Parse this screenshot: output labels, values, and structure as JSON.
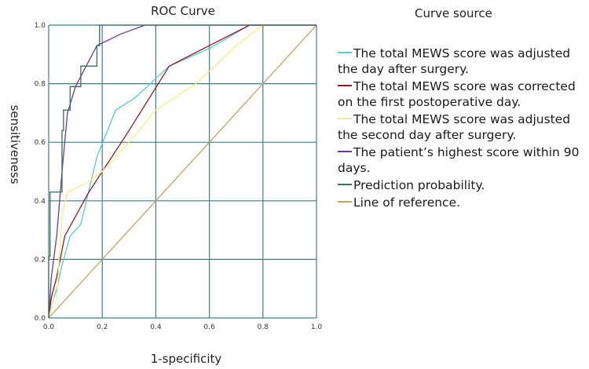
{
  "chart_data": {
    "type": "line",
    "title": "ROC Curve",
    "xlabel": "1-specificity",
    "ylabel": "sensitiveness",
    "xlim": [
      0,
      1
    ],
    "ylim": [
      0,
      1
    ],
    "xticks": [
      "0.0",
      "0.2",
      "0.4",
      "0.6",
      "0.8",
      "1.0"
    ],
    "yticks": [
      "0.0",
      "0.2",
      "0.4",
      "0.6",
      "0.8",
      "1.0"
    ],
    "grid": true,
    "legend_title": "Curve source",
    "legend_position": "right",
    "series": [
      {
        "name": "The total MEWS score was adjusted the day after surgery.",
        "color": "#5bc7cf",
        "x": [
          0,
          0.02,
          0.03,
          0.05,
          0.08,
          0.12,
          0.18,
          0.25,
          0.32,
          0.45,
          0.6,
          0.75,
          1
        ],
        "y": [
          0,
          0.07,
          0.1,
          0.18,
          0.28,
          0.32,
          0.55,
          0.71,
          0.75,
          0.86,
          0.92,
          1,
          1
        ]
      },
      {
        "name": "The total MEWS score was corrected on the first postoperative day.",
        "color": "#8b1c24",
        "x": [
          0,
          0.01,
          0.03,
          0.06,
          0.15,
          0.3,
          0.45,
          0.6,
          0.75,
          1
        ],
        "y": [
          0,
          0.07,
          0.14,
          0.28,
          0.43,
          0.64,
          0.86,
          0.93,
          1,
          1
        ]
      },
      {
        "name": "The total MEWS score was adjusted the second day after surgery.",
        "color": "#f4ec8a",
        "x": [
          0,
          0.02,
          0.03,
          0.05,
          0.07,
          0.14,
          0.2,
          0.3,
          0.4,
          0.55,
          0.7,
          0.8,
          1
        ],
        "y": [
          0,
          0.07,
          0.07,
          0.35,
          0.43,
          0.46,
          0.5,
          0.6,
          0.71,
          0.8,
          0.93,
          1,
          1
        ]
      },
      {
        "name": "The patient’s highest score within 90 days.",
        "color": "#6b3c86",
        "x": [
          0,
          0.01,
          0.03,
          0.05,
          0.07,
          0.1,
          0.14,
          0.18,
          0.27,
          0.36,
          0.5,
          1
        ],
        "y": [
          0,
          0.14,
          0.28,
          0.5,
          0.7,
          0.79,
          0.86,
          0.93,
          0.97,
          1,
          1,
          1
        ]
      },
      {
        "name": "Prediction probability.",
        "color": "#3d6b5e",
        "x": [
          0,
          0,
          0.005,
          0.005,
          0.05,
          0.05,
          0.055,
          0.055,
          0.06,
          0.06,
          0.08,
          0.08,
          0.1,
          0.1,
          0.12,
          0.12,
          0.18,
          0.18,
          0.19,
          0.19,
          0.2,
          0.2,
          0.36,
          0.6,
          1
        ],
        "y": [
          0,
          0.21,
          0.21,
          0.43,
          0.43,
          0.64,
          0.64,
          0.71,
          0.71,
          0.71,
          0.71,
          0.79,
          0.79,
          0.79,
          0.79,
          0.86,
          0.86,
          0.93,
          0.93,
          1,
          1,
          1,
          1,
          1,
          1
        ]
      },
      {
        "name": "Line of reference.",
        "color": "#c2a46a",
        "x": [
          0,
          1
        ],
        "y": [
          0,
          1
        ]
      }
    ]
  }
}
